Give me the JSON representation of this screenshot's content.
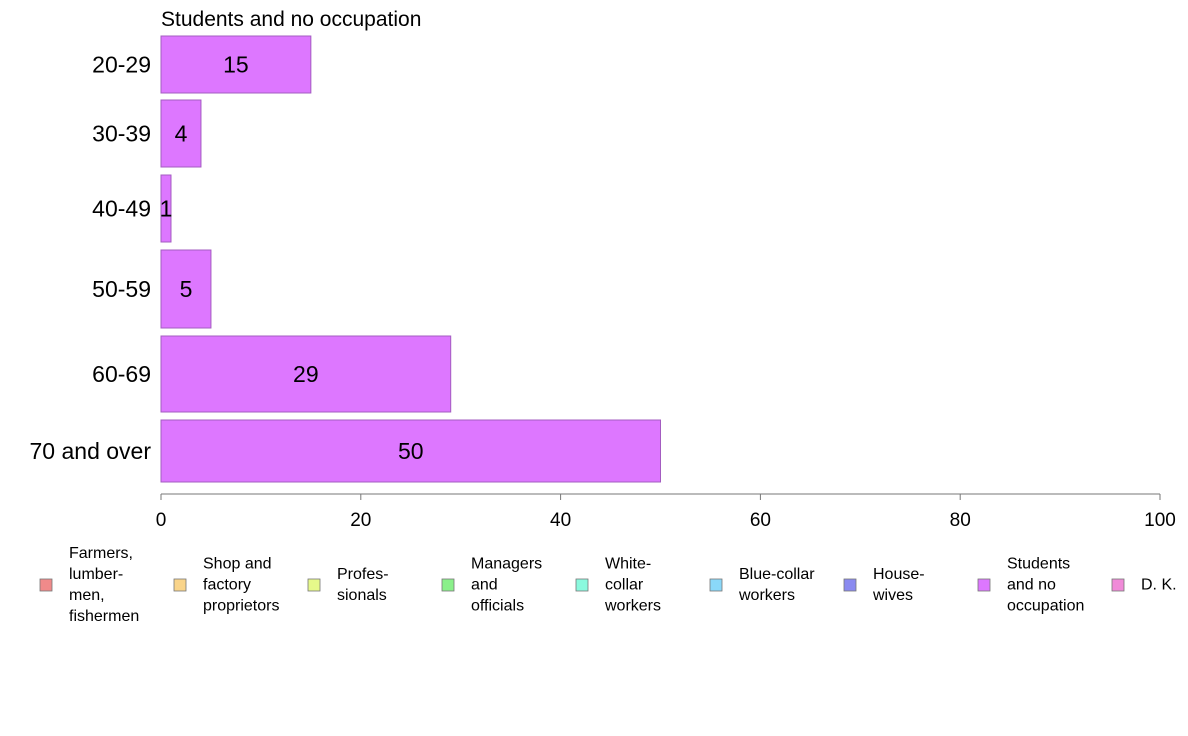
{
  "chart_data": {
    "type": "bar",
    "orientation": "horizontal",
    "title": "Students and no occupation",
    "categories": [
      "20-29",
      "30-39",
      "40-49",
      "50-59",
      "60-69",
      "70 and over"
    ],
    "values": [
      15,
      4,
      1,
      5,
      29,
      50
    ],
    "bar_value_labels": [
      "15",
      "4",
      "1",
      "5",
      "29",
      "50"
    ],
    "xlim": [
      0,
      100
    ],
    "x_ticks": [
      0,
      20,
      40,
      60,
      80,
      100
    ],
    "x_tick_labels": [
      "0",
      "20",
      "40",
      "60",
      "80",
      "100"
    ],
    "xlabel": "",
    "ylabel": "",
    "grid": false,
    "bar_color": "#dd77ff",
    "bar_edge_color": "#a35cc0",
    "legend": {
      "placement": "bottom",
      "items": [
        {
          "lines": [
            "Farmers,",
            "lumber-",
            "men,",
            "fishermen"
          ],
          "color": "#f08a8a"
        },
        {
          "lines": [
            "Shop and",
            "factory",
            "proprietors"
          ],
          "color": "#f9d48a"
        },
        {
          "lines": [
            "Profes-",
            "sionals"
          ],
          "color": "#e6f98a"
        },
        {
          "lines": [
            "Managers",
            "and",
            "officials"
          ],
          "color": "#8af08a"
        },
        {
          "lines": [
            "White-",
            "collar",
            "workers"
          ],
          "color": "#8af9de"
        },
        {
          "lines": [
            "Blue-collar",
            "workers"
          ],
          "color": "#8ad8f9"
        },
        {
          "lines": [
            "House-",
            "wives"
          ],
          "color": "#8a8af0"
        },
        {
          "lines": [
            "Students",
            "and no",
            "occupation"
          ],
          "color": "#dd77ff"
        },
        {
          "lines": [
            "D. K."
          ],
          "color": "#f08ad8"
        }
      ]
    }
  }
}
